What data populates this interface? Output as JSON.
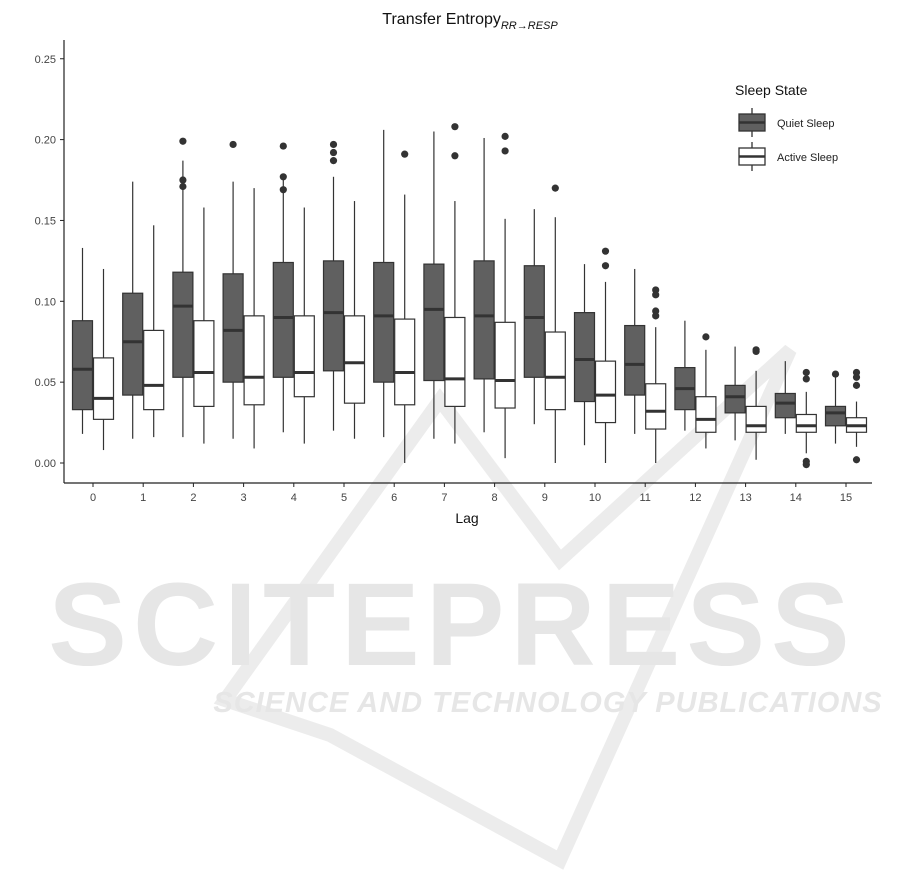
{
  "watermark": {
    "big_text": "SCITEPRESS",
    "small_text": "SCIENCE AND TECHNOLOGY PUBLICATIONS"
  },
  "chart_data": {
    "type": "boxplot",
    "title_main": "Transfer Entropy",
    "title_sub": "RR→RESP",
    "xlabel": "Lag",
    "ylabel": "",
    "ylim": [
      -0.01,
      0.25
    ],
    "yticks": [
      "0.00",
      "0.05",
      "0.10",
      "0.15",
      "0.20",
      "0.25"
    ],
    "ytick_values": [
      0.0,
      0.05,
      0.1,
      0.15,
      0.2,
      0.25
    ],
    "categories": [
      "0",
      "1",
      "2",
      "3",
      "4",
      "5",
      "6",
      "7",
      "8",
      "9",
      "10",
      "11",
      "12",
      "13",
      "14",
      "15"
    ],
    "grid": false,
    "legend": {
      "title": "Sleep State",
      "position": "top-right",
      "entries": [
        "Quiet Sleep",
        "Active Sleep"
      ]
    },
    "colors": {
      "quiet": "#606060",
      "active": "#ffffff",
      "outline": "#333333",
      "outlier": "#333333"
    },
    "series": [
      {
        "name": "Quiet Sleep",
        "boxes": [
          {
            "min": 0.018,
            "q1": 0.033,
            "median": 0.058,
            "q3": 0.088,
            "max": 0.133,
            "outliers": []
          },
          {
            "min": 0.015,
            "q1": 0.042,
            "median": 0.075,
            "q3": 0.105,
            "max": 0.174,
            "outliers": []
          },
          {
            "min": 0.016,
            "q1": 0.053,
            "median": 0.097,
            "q3": 0.118,
            "max": 0.187,
            "outliers": [
              0.199,
              0.175,
              0.171
            ]
          },
          {
            "min": 0.015,
            "q1": 0.05,
            "median": 0.082,
            "q3": 0.117,
            "max": 0.174,
            "outliers": [
              0.197
            ]
          },
          {
            "min": 0.019,
            "q1": 0.053,
            "median": 0.09,
            "q3": 0.124,
            "max": 0.175,
            "outliers": [
              0.196,
              0.177,
              0.169
            ]
          },
          {
            "min": 0.02,
            "q1": 0.057,
            "median": 0.093,
            "q3": 0.125,
            "max": 0.177,
            "outliers": [
              0.197,
              0.192,
              0.187
            ]
          },
          {
            "min": 0.016,
            "q1": 0.05,
            "median": 0.091,
            "q3": 0.124,
            "max": 0.206,
            "outliers": []
          },
          {
            "min": 0.015,
            "q1": 0.051,
            "median": 0.095,
            "q3": 0.123,
            "max": 0.205,
            "outliers": []
          },
          {
            "min": 0.019,
            "q1": 0.052,
            "median": 0.091,
            "q3": 0.125,
            "max": 0.201,
            "outliers": []
          },
          {
            "min": 0.024,
            "q1": 0.053,
            "median": 0.09,
            "q3": 0.122,
            "max": 0.157,
            "outliers": []
          },
          {
            "min": 0.011,
            "q1": 0.038,
            "median": 0.064,
            "q3": 0.093,
            "max": 0.123,
            "outliers": []
          },
          {
            "min": 0.018,
            "q1": 0.042,
            "median": 0.061,
            "q3": 0.085,
            "max": 0.12,
            "outliers": []
          },
          {
            "min": 0.02,
            "q1": 0.033,
            "median": 0.046,
            "q3": 0.059,
            "max": 0.088,
            "outliers": []
          },
          {
            "min": 0.014,
            "q1": 0.031,
            "median": 0.041,
            "q3": 0.048,
            "max": 0.072,
            "outliers": []
          },
          {
            "min": 0.018,
            "q1": 0.028,
            "median": 0.037,
            "q3": 0.043,
            "max": 0.063,
            "outliers": []
          },
          {
            "min": 0.012,
            "q1": 0.023,
            "median": 0.031,
            "q3": 0.035,
            "max": 0.054,
            "outliers": [
              0.055
            ]
          }
        ]
      },
      {
        "name": "Active Sleep",
        "boxes": [
          {
            "min": 0.008,
            "q1": 0.027,
            "median": 0.04,
            "q3": 0.065,
            "max": 0.12,
            "outliers": []
          },
          {
            "min": 0.016,
            "q1": 0.033,
            "median": 0.048,
            "q3": 0.082,
            "max": 0.147,
            "outliers": []
          },
          {
            "min": 0.012,
            "q1": 0.035,
            "median": 0.056,
            "q3": 0.088,
            "max": 0.158,
            "outliers": []
          },
          {
            "min": 0.009,
            "q1": 0.036,
            "median": 0.053,
            "q3": 0.091,
            "max": 0.17,
            "outliers": []
          },
          {
            "min": 0.012,
            "q1": 0.041,
            "median": 0.056,
            "q3": 0.091,
            "max": 0.158,
            "outliers": []
          },
          {
            "min": 0.015,
            "q1": 0.037,
            "median": 0.062,
            "q3": 0.091,
            "max": 0.162,
            "outliers": []
          },
          {
            "min": 0.0,
            "q1": 0.036,
            "median": 0.056,
            "q3": 0.089,
            "max": 0.166,
            "outliers": [
              0.191
            ]
          },
          {
            "min": 0.012,
            "q1": 0.035,
            "median": 0.052,
            "q3": 0.09,
            "max": 0.162,
            "outliers": [
              0.208,
              0.19
            ]
          },
          {
            "min": 0.003,
            "q1": 0.034,
            "median": 0.051,
            "q3": 0.087,
            "max": 0.151,
            "outliers": [
              0.202,
              0.193
            ]
          },
          {
            "min": 0.0,
            "q1": 0.033,
            "median": 0.053,
            "q3": 0.081,
            "max": 0.152,
            "outliers": [
              0.17
            ]
          },
          {
            "min": 0.0,
            "q1": 0.025,
            "median": 0.042,
            "q3": 0.063,
            "max": 0.112,
            "outliers": [
              0.131,
              0.122
            ]
          },
          {
            "min": 0.0,
            "q1": 0.021,
            "median": 0.032,
            "q3": 0.049,
            "max": 0.084,
            "outliers": [
              0.107,
              0.104,
              0.094,
              0.091
            ]
          },
          {
            "min": 0.009,
            "q1": 0.019,
            "median": 0.027,
            "q3": 0.041,
            "max": 0.07,
            "outliers": [
              0.078
            ]
          },
          {
            "min": 0.002,
            "q1": 0.019,
            "median": 0.023,
            "q3": 0.035,
            "max": 0.057,
            "outliers": [
              0.07,
              0.069
            ]
          },
          {
            "min": 0.006,
            "q1": 0.019,
            "median": 0.023,
            "q3": 0.03,
            "max": 0.044,
            "outliers": [
              0.056,
              0.052,
              0.001,
              -0.001
            ]
          },
          {
            "min": 0.01,
            "q1": 0.019,
            "median": 0.023,
            "q3": 0.028,
            "max": 0.038,
            "outliers": [
              0.056,
              0.053,
              0.048,
              0.002
            ]
          }
        ]
      }
    ]
  }
}
